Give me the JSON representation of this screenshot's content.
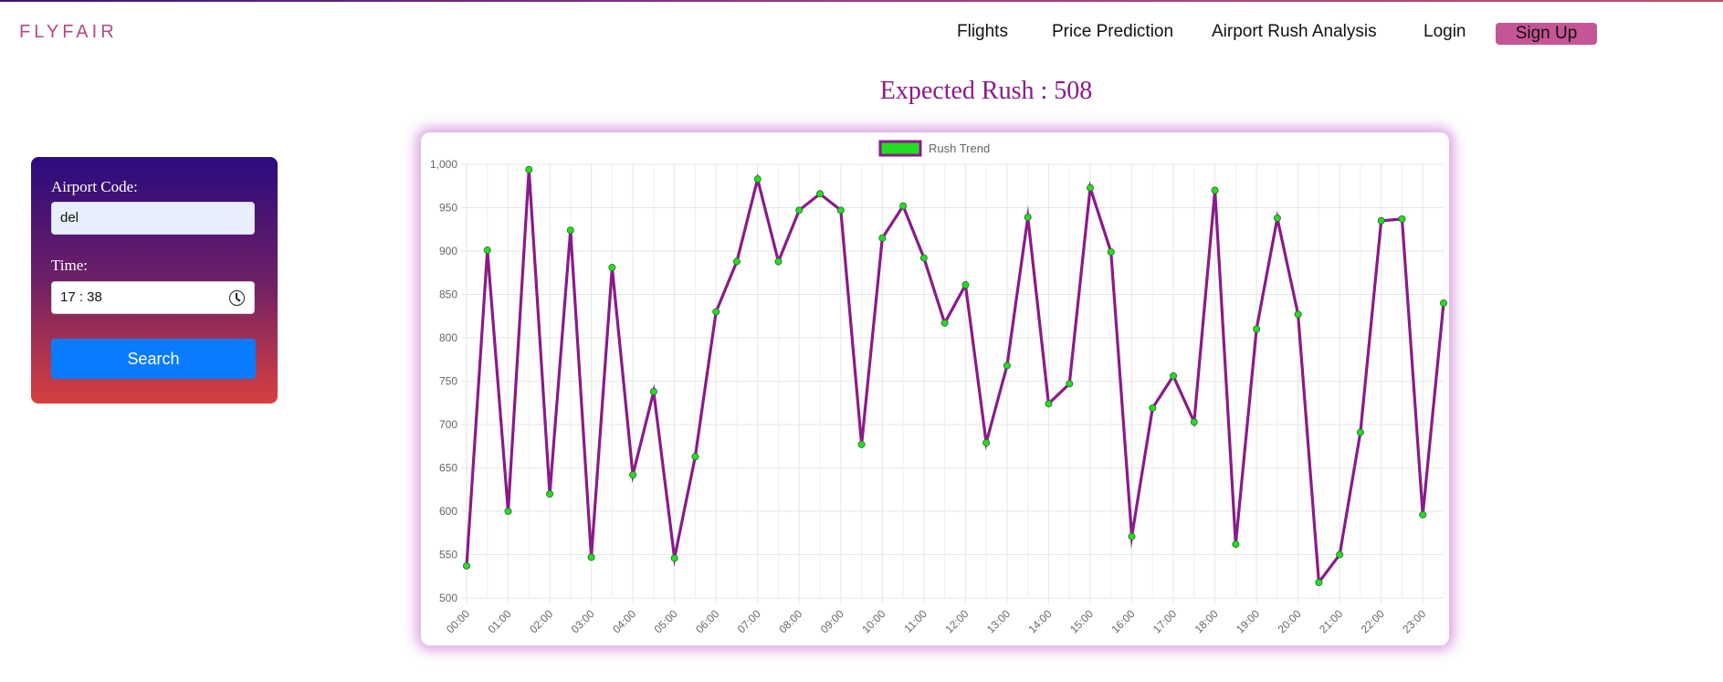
{
  "brand": {
    "logo": "FLYFAIR"
  },
  "nav": {
    "flights": "Flights",
    "price_prediction": "Price Prediction",
    "rush_analysis": "Airport Rush Analysis",
    "login": "Login",
    "signup": "Sign Up"
  },
  "headline": "Expected Rush : 508",
  "form": {
    "airport_label": "Airport Code:",
    "airport_value": "del",
    "time_label": "Time:",
    "time_value": "17 : 38",
    "search_label": "Search"
  },
  "colors": {
    "line": "#8a1a8a",
    "point": "#22dd22",
    "accent": "#c55594",
    "button": "#0a7bff"
  },
  "chart_data": {
    "type": "line",
    "legend": "Rush Trend",
    "legend_position": "top-center",
    "grid": true,
    "ylim": [
      500,
      1000
    ],
    "yticks": [
      "1,000",
      "950",
      "900",
      "850",
      "800",
      "750",
      "700",
      "650",
      "600",
      "550",
      "500"
    ],
    "x_tick_labels": [
      "00:00",
      "01:00",
      "02:00",
      "03:00",
      "04:00",
      "05:00",
      "06:00",
      "07:00",
      "08:00",
      "09:00",
      "10:00",
      "11:00",
      "12:00",
      "13:00",
      "14:00",
      "15:00",
      "16:00",
      "17:00",
      "18:00",
      "19:00",
      "20:00",
      "21:00",
      "22:00",
      "23:00"
    ],
    "x": [
      "00:00",
      "00:30",
      "01:00",
      "01:30",
      "02:00",
      "02:30",
      "03:00",
      "03:30",
      "04:00",
      "04:30",
      "05:00",
      "05:30",
      "06:00",
      "06:30",
      "07:00",
      "07:30",
      "08:00",
      "08:30",
      "09:00",
      "09:30",
      "10:00",
      "10:30",
      "11:00",
      "11:30",
      "12:00",
      "12:30",
      "13:00",
      "13:30",
      "14:00",
      "14:30",
      "15:00",
      "15:30",
      "16:00",
      "16:30",
      "17:00",
      "17:30",
      "18:00",
      "18:30",
      "19:00",
      "19:30",
      "20:00",
      "20:30",
      "21:00",
      "21:30",
      "22:00",
      "22:30",
      "23:00",
      "23:30"
    ],
    "series": [
      {
        "name": "Rush Trend",
        "values": [
          537,
          901,
          600,
          994,
          620,
          924,
          547,
          881,
          642,
          738,
          546,
          663,
          830,
          888,
          983,
          888,
          947,
          966,
          947,
          677,
          915,
          952,
          892,
          817,
          861,
          679,
          768,
          939,
          724,
          747,
          973,
          899,
          571,
          719,
          756,
          703,
          970,
          562,
          810,
          938,
          827,
          518,
          550,
          691,
          935,
          937,
          596,
          840
        ]
      }
    ]
  }
}
